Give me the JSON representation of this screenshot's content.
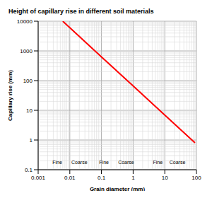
{
  "chart_data": {
    "type": "line",
    "title": "Height of capillary rise in different soil materials",
    "x_label": "Grain diameter (mm)",
    "y_label": "Capillary rise (mm)",
    "x": [
      0.006,
      0.1,
      1,
      10,
      90
    ],
    "values": [
      10000,
      630,
      66,
      6.9,
      0.8
    ],
    "color": "#ff0000",
    "log": true,
    "grid": true,
    "xlim": [
      0.001,
      100
    ],
    "ylim": [
      0.1,
      10000
    ],
    "xticks": [
      0.001,
      0.01,
      0.1,
      1,
      10,
      100
    ],
    "yticks": [
      0.1,
      1,
      10,
      100,
      1000,
      10000
    ],
    "annotations": [
      {
        "text": "Fine",
        "x": 0.004
      },
      {
        "text": "Coarse",
        "x": 0.02
      },
      {
        "text": "Fine",
        "x": 0.12
      },
      {
        "text": "Coarse",
        "x": 0.6
      },
      {
        "text": "Fine",
        "x": 6
      },
      {
        "text": "Coarse",
        "x": 25
      }
    ]
  }
}
